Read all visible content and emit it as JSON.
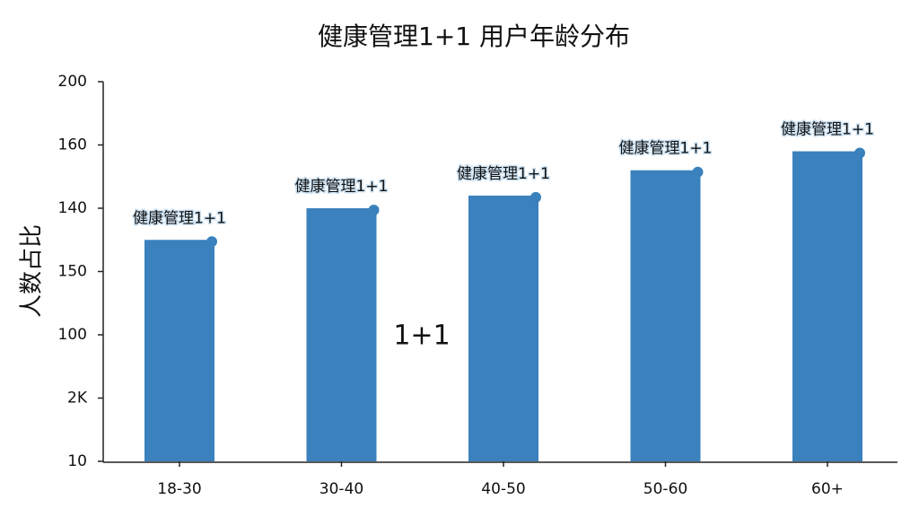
{
  "chart_data": {
    "type": "bar",
    "title": "健康管理1+1 用户年龄分布",
    "ylabel": "人数占比",
    "categories": [
      "18-30",
      "30-40",
      "40-50",
      "50-60",
      "60+"
    ],
    "values": [
      3.5,
      4.0,
      4.2,
      4.6,
      4.9
    ],
    "bar_labels": [
      "健康管理1+1",
      "健康管理1+1",
      "健康管理1+1",
      "健康管理1+1",
      "健康管理1+1"
    ],
    "annotation": "1+1",
    "color": "#3a81bd",
    "marker_color": "#3a81bd",
    "ylim": [
      0,
      6
    ],
    "yticks": [
      {
        "value": 0,
        "label": "10"
      },
      {
        "value": 1,
        "label": "2K"
      },
      {
        "value": 2,
        "label": "100"
      },
      {
        "value": 3,
        "label": "150"
      },
      {
        "value": 4,
        "label": "140"
      },
      {
        "value": 5,
        "label": "160"
      },
      {
        "value": 6,
        "label": "200"
      }
    ]
  }
}
